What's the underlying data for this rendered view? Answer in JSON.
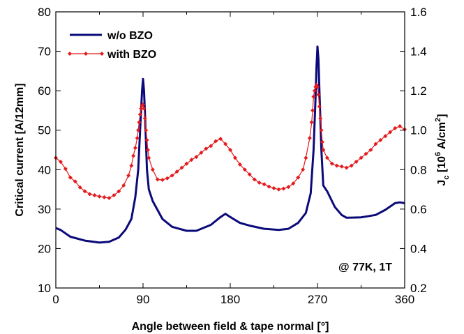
{
  "chart_data": {
    "type": "line",
    "xlabel": "Angle between field & tape normal [°]",
    "ylabel": "Critical current  [A/12mm]",
    "y2label": {
      "base": "J",
      "sub": "c",
      "pre": " [10",
      "sup1": "6",
      "mid": " A/cm",
      "sup2": "2",
      "end": "]"
    },
    "xlim": [
      0,
      360
    ],
    "ylim": [
      10,
      80
    ],
    "y2lim": [
      0.2,
      1.6
    ],
    "xticks": [
      "0",
      "90",
      "180",
      "270",
      "360"
    ],
    "yticks": [
      "10",
      "20",
      "30",
      "40",
      "50",
      "60",
      "70",
      "80"
    ],
    "y2ticks": [
      "0.2",
      "0.4",
      "0.6",
      "0.8",
      "1.0",
      "1.2",
      "1.4",
      "1.6"
    ],
    "annotation": "@ 77K, 1T",
    "legend_position": "top-left",
    "series": [
      {
        "name": "w/o BZO",
        "color": "#0a0a7a",
        "marker": "none",
        "x": [
          0,
          5,
          15,
          30,
          45,
          55,
          65,
          72,
          78,
          82,
          85,
          87,
          88,
          89,
          90,
          91,
          92,
          94,
          96,
          100,
          110,
          120,
          135,
          145,
          160,
          170,
          175,
          180,
          190,
          200,
          215,
          230,
          240,
          250,
          258,
          263,
          266,
          268,
          269,
          270,
          271,
          272,
          274,
          276,
          280,
          288,
          295,
          300,
          315,
          330,
          340,
          350,
          355,
          360
        ],
        "y": [
          25.2,
          24.7,
          23.0,
          22.0,
          21.5,
          21.7,
          22.8,
          24.8,
          27.5,
          33.0,
          40.0,
          50.0,
          55.0,
          60.0,
          63.0,
          60.0,
          54.0,
          40.0,
          35.0,
          32.0,
          27.5,
          25.5,
          24.5,
          24.5,
          26.0,
          28.0,
          28.8,
          28.0,
          26.5,
          25.8,
          25.0,
          24.7,
          25.0,
          26.5,
          29.0,
          34.0,
          45.0,
          58.0,
          66.0,
          71.2,
          68.0,
          60.0,
          45.0,
          36.0,
          34.5,
          30.5,
          28.5,
          27.8,
          27.9,
          28.5,
          29.8,
          31.5,
          31.7,
          31.5
        ]
      },
      {
        "name": "with BZO",
        "color": "#e41a1c",
        "marker": "diamond",
        "x": [
          0,
          5,
          10,
          15,
          20,
          25,
          30,
          35,
          40,
          45,
          50,
          55,
          60,
          65,
          70,
          75,
          78,
          80,
          82,
          84,
          85,
          86,
          87,
          88,
          89,
          90,
          91,
          92,
          93,
          94,
          95,
          96,
          100,
          105,
          110,
          115,
          120,
          125,
          130,
          135,
          140,
          145,
          150,
          155,
          160,
          165,
          170,
          175,
          180,
          185,
          190,
          195,
          200,
          205,
          210,
          215,
          220,
          225,
          230,
          235,
          240,
          245,
          250,
          255,
          258,
          262,
          264,
          265,
          266,
          267,
          268,
          269,
          270,
          271,
          272,
          273,
          274,
          275,
          276,
          280,
          285,
          290,
          295,
          300,
          305,
          310,
          315,
          320,
          325,
          330,
          335,
          340,
          345,
          350,
          355,
          360
        ],
        "y": [
          43.0,
          42.0,
          40.2,
          38.0,
          37.0,
          35.5,
          34.5,
          33.8,
          33.5,
          33.2,
          33.0,
          32.8,
          33.5,
          34.5,
          36.0,
          38.5,
          41.0,
          43.5,
          45.5,
          48.0,
          50.0,
          52.0,
          54.0,
          55.5,
          56.3,
          56.5,
          55.5,
          53.0,
          50.0,
          47.5,
          45.0,
          43.0,
          40.0,
          37.5,
          37.4,
          37.8,
          38.5,
          39.5,
          40.5,
          41.5,
          42.5,
          43.2,
          44.3,
          45.3,
          46.0,
          47.2,
          47.8,
          46.5,
          45.0,
          43.0,
          41.3,
          40.0,
          38.8,
          37.5,
          36.7,
          36.3,
          35.7,
          35.3,
          35.0,
          35.2,
          35.6,
          36.5,
          38.0,
          40.0,
          43.0,
          48.0,
          52.0,
          55.0,
          58.5,
          60.0,
          61.0,
          61.5,
          61.0,
          59.0,
          56.0,
          53.0,
          50.0,
          47.0,
          45.0,
          43.0,
          41.5,
          41.0,
          40.8,
          40.5,
          41.0,
          42.0,
          43.0,
          44.0,
          45.0,
          46.5,
          47.5,
          48.5,
          49.5,
          50.5,
          51.0,
          50.2
        ]
      }
    ]
  }
}
